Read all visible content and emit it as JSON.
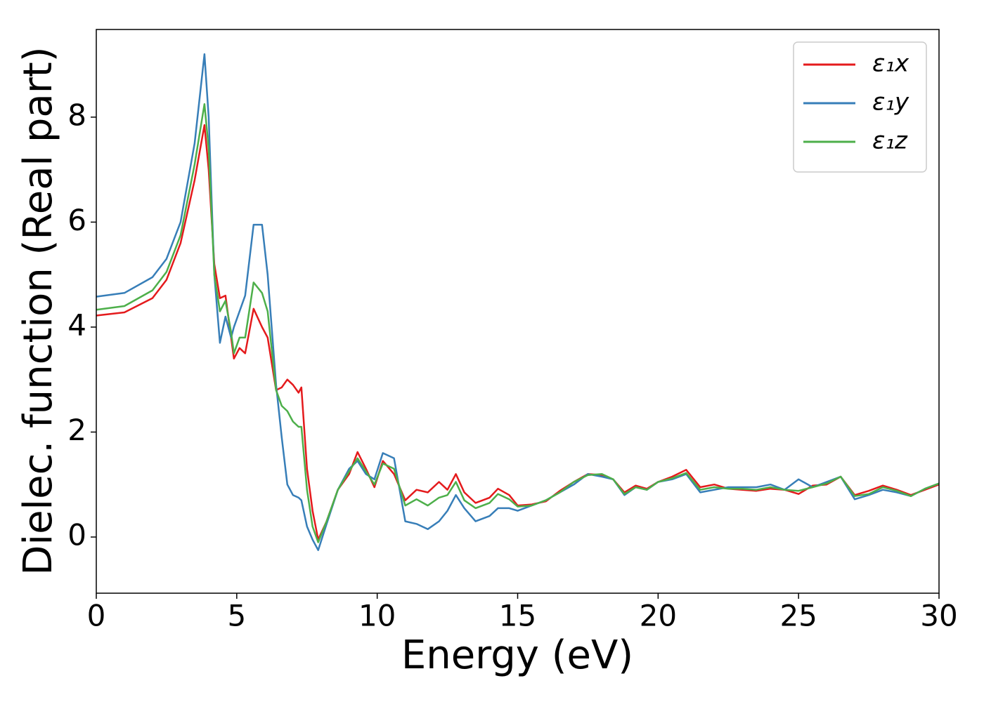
{
  "chart_data": {
    "type": "line",
    "xlabel": "Energy (eV)",
    "ylabel": "Dielec. function (Real part)",
    "x": [
      0,
      1,
      2,
      2.5,
      3,
      3.5,
      3.85,
      4.0,
      4.2,
      4.4,
      4.6,
      4.8,
      4.9,
      5.1,
      5.3,
      5.6,
      5.9,
      6.1,
      6.4,
      6.6,
      6.8,
      7.0,
      7.2,
      7.3,
      7.5,
      7.7,
      7.9,
      8.2,
      8.6,
      9,
      9.3,
      9.6,
      9.9,
      10.2,
      10.6,
      11,
      11.4,
      11.8,
      12.2,
      12.5,
      12.8,
      13.1,
      13.5,
      14,
      14.3,
      14.7,
      15,
      15.5,
      16,
      16.5,
      17,
      17.5,
      18,
      18.4,
      18.8,
      19.2,
      19.6,
      20,
      20.5,
      21,
      21.5,
      22,
      22.5,
      23,
      23.5,
      24,
      24.5,
      25,
      25.5,
      26,
      26.5,
      27,
      27.5,
      28,
      28.5,
      29,
      29.5,
      30
    ],
    "series": [
      {
        "name": "ε₁x",
        "color": "#e41a1c",
        "values": [
          4.22,
          4.28,
          4.55,
          4.9,
          5.6,
          6.8,
          7.85,
          7.0,
          5.2,
          4.55,
          4.6,
          3.8,
          3.4,
          3.6,
          3.5,
          4.35,
          4.0,
          3.8,
          2.8,
          2.85,
          3.0,
          2.9,
          2.75,
          2.85,
          1.3,
          0.5,
          -0.05,
          0.3,
          0.9,
          1.2,
          1.62,
          1.3,
          0.95,
          1.45,
          1.2,
          0.7,
          0.9,
          0.85,
          1.05,
          0.9,
          1.2,
          0.85,
          0.65,
          0.75,
          0.92,
          0.8,
          0.6,
          0.62,
          0.68,
          0.88,
          1.05,
          1.2,
          1.18,
          1.1,
          0.85,
          0.98,
          0.92,
          1.05,
          1.15,
          1.28,
          0.95,
          1.0,
          0.92,
          0.9,
          0.88,
          0.92,
          0.9,
          0.82,
          0.98,
          1.0,
          1.15,
          0.8,
          0.88,
          0.98,
          0.9,
          0.8,
          0.9,
          1.0
        ]
      },
      {
        "name": "ε₁y",
        "color": "#377eb8",
        "values": [
          4.58,
          4.65,
          4.95,
          5.3,
          6.0,
          7.5,
          9.2,
          8.0,
          5.0,
          3.7,
          4.2,
          3.8,
          4.0,
          4.3,
          4.6,
          5.95,
          5.95,
          5.0,
          2.9,
          1.9,
          1.0,
          0.8,
          0.75,
          0.7,
          0.2,
          -0.05,
          -0.25,
          0.25,
          0.9,
          1.3,
          1.45,
          1.2,
          1.1,
          1.6,
          1.5,
          0.3,
          0.25,
          0.15,
          0.3,
          0.5,
          0.8,
          0.55,
          0.3,
          0.4,
          0.55,
          0.55,
          0.5,
          0.6,
          0.7,
          0.85,
          1.0,
          1.2,
          1.15,
          1.1,
          0.8,
          0.95,
          0.9,
          1.05,
          1.1,
          1.2,
          0.85,
          0.9,
          0.95,
          0.95,
          0.95,
          1.0,
          0.9,
          1.1,
          0.95,
          1.05,
          1.15,
          0.72,
          0.8,
          0.9,
          0.85,
          0.78,
          0.92,
          1.02
        ]
      },
      {
        "name": "ε₁z",
        "color": "#4daf4a",
        "values": [
          4.33,
          4.4,
          4.7,
          5.05,
          5.75,
          7.1,
          8.25,
          7.4,
          5.0,
          4.3,
          4.5,
          3.9,
          3.5,
          3.8,
          3.8,
          4.85,
          4.65,
          4.3,
          2.8,
          2.5,
          2.4,
          2.2,
          2.1,
          2.1,
          0.9,
          0.2,
          -0.1,
          0.3,
          0.9,
          1.25,
          1.5,
          1.25,
          1.0,
          1.4,
          1.3,
          0.6,
          0.72,
          0.6,
          0.75,
          0.8,
          1.05,
          0.7,
          0.55,
          0.65,
          0.82,
          0.72,
          0.58,
          0.6,
          0.7,
          0.85,
          1.05,
          1.18,
          1.2,
          1.1,
          0.82,
          0.95,
          0.9,
          1.05,
          1.12,
          1.22,
          0.9,
          0.95,
          0.92,
          0.92,
          0.9,
          0.95,
          0.9,
          0.88,
          0.95,
          1.02,
          1.15,
          0.78,
          0.82,
          0.95,
          0.88,
          0.78,
          0.92,
          1.02
        ]
      }
    ],
    "xlim": [
      0,
      30
    ],
    "xticks": [
      0,
      5,
      10,
      15,
      20,
      25,
      30
    ],
    "ylim": [
      -1.07,
      9.67
    ],
    "yticks": [
      0,
      2,
      4,
      6,
      8
    ],
    "legend": "upper right"
  }
}
